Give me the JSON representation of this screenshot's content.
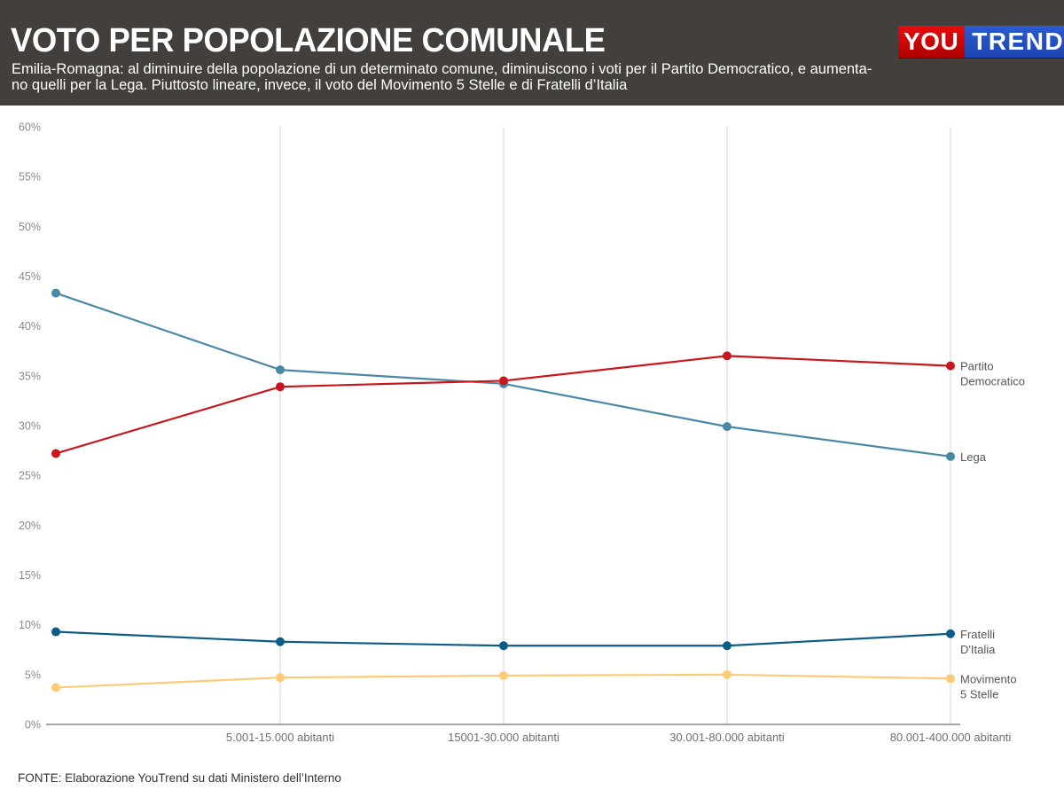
{
  "header": {
    "title": "VOTO PER POPOLAZIONE COMUNALE",
    "subtitle_lines": [
      "Emilia-Romagna: al diminuire della popolazione di un determinato comune, diminuiscono i voti per il Partito Democratico, e aumenta-",
      "no quelli per la Lega. Piuttosto lineare, invece, il voto del Movimento 5 Stelle e di Fratelli d’Italia"
    ],
    "logo": {
      "part1": "YOU",
      "part2": "TREND",
      "color1": "#d40000",
      "color2": "#1f4fc4"
    }
  },
  "source": "FONTE: Elaborazione YouTrend su dati Ministero dell’Interno",
  "chart_data": {
    "type": "line",
    "title": "VOTO PER POPOLAZIONE COMUNALE",
    "xlabel": "",
    "ylabel": "",
    "categories": [
      "",
      "5.001-15.000 abitanti",
      "15001-30.000 abitanti",
      "30.001-80.000 abitanti",
      "80.001-400.000 abitanti"
    ],
    "ylim": [
      0,
      60
    ],
    "yticks": [
      0,
      5,
      10,
      15,
      20,
      25,
      30,
      35,
      40,
      45,
      50,
      55,
      60
    ],
    "ytick_labels": [
      "0%",
      "5%",
      "10%",
      "15%",
      "20%",
      "25%",
      "30%",
      "35%",
      "40%",
      "45%",
      "50%",
      "55%",
      "60%"
    ],
    "grid": "vertical",
    "legend": "end-of-line labels (right)",
    "series": [
      {
        "name": "Partito Democratico",
        "label_lines": [
          "Partito",
          "Democratico"
        ],
        "color": "#c8161d",
        "values": [
          27.2,
          33.9,
          34.5,
          37.0,
          36.0
        ]
      },
      {
        "name": "Lega",
        "label_lines": [
          "Lega"
        ],
        "color": "#4a89a6",
        "values": [
          43.3,
          35.6,
          34.2,
          29.9,
          26.9
        ]
      },
      {
        "name": "Fratelli D'Italia",
        "label_lines": [
          "Fratelli",
          "D'Italia"
        ],
        "color": "#0d5c86",
        "values": [
          9.3,
          8.3,
          7.9,
          7.9,
          9.1
        ]
      },
      {
        "name": "Movimento 5 Stelle",
        "label_lines": [
          "Movimento",
          "5 Stelle"
        ],
        "color": "#fdcb78",
        "values": [
          3.7,
          4.7,
          4.9,
          5.0,
          4.6
        ]
      }
    ]
  }
}
